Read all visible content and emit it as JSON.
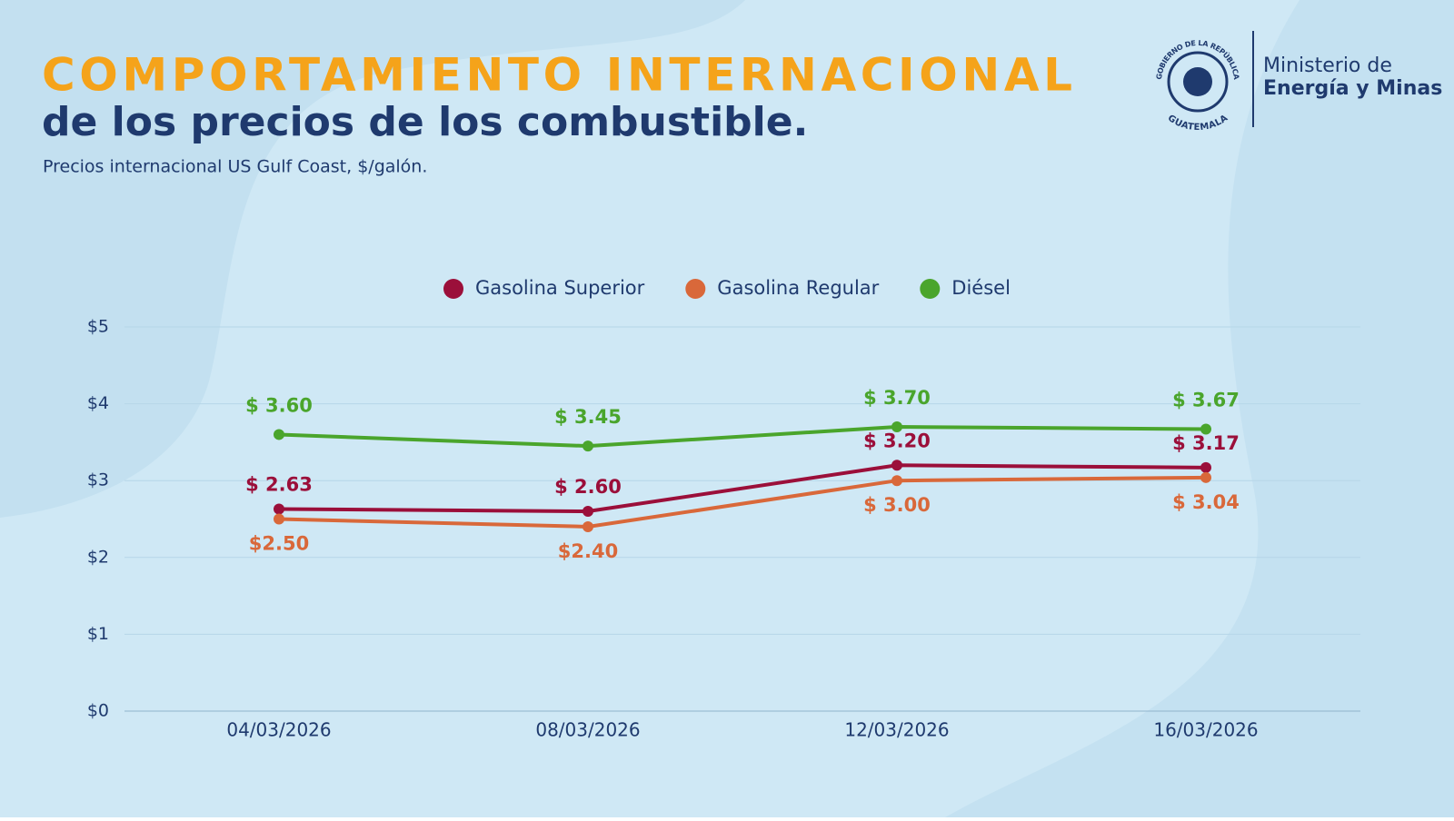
{
  "header": {
    "title": "COMPORTAMIENTO INTERNACIONAL",
    "subtitle": "de los precios de los combustible.",
    "note": "Precios internacional US Gulf Coast, $/galón."
  },
  "logo": {
    "seal_top": "GOBIERNO DE LA REPÚBLICA",
    "seal_bottom": "GUATEMALA",
    "line1": "Ministerio de",
    "line2": "Energía y Minas"
  },
  "chart_data": {
    "type": "line",
    "categories": [
      "04/03/2026",
      "08/03/2026",
      "12/03/2026",
      "16/03/2026"
    ],
    "series": [
      {
        "name": "Gasolina Superior",
        "color": "#9b0f3a",
        "values": [
          2.63,
          2.6,
          3.2,
          3.17
        ],
        "value_labels": [
          "$ 2.63",
          "$ 2.60",
          "$ 3.20",
          "$ 3.17"
        ]
      },
      {
        "name": "Gasolina Regular",
        "color": "#d9683a",
        "values": [
          2.5,
          2.4,
          3.0,
          3.04
        ],
        "value_labels": [
          "$2.50",
          "$2.40",
          "$ 3.00",
          "$ 3.04"
        ]
      },
      {
        "name": "Diésel",
        "color": "#4aa52c",
        "values": [
          3.6,
          3.45,
          3.7,
          3.67
        ],
        "value_labels": [
          "$ 3.60",
          "$ 3.45",
          "$ 3.70",
          "$ 3.67"
        ]
      }
    ],
    "ylim": [
      0,
      5
    ],
    "yticks": [
      {
        "value": 0,
        "label": "$0"
      },
      {
        "value": 1,
        "label": "$1"
      },
      {
        "value": 2,
        "label": "$2"
      },
      {
        "value": 3,
        "label": "$3"
      },
      {
        "value": 4,
        "label": "$4"
      },
      {
        "value": 5,
        "label": "$5"
      }
    ],
    "grid": true,
    "legend": "top"
  }
}
